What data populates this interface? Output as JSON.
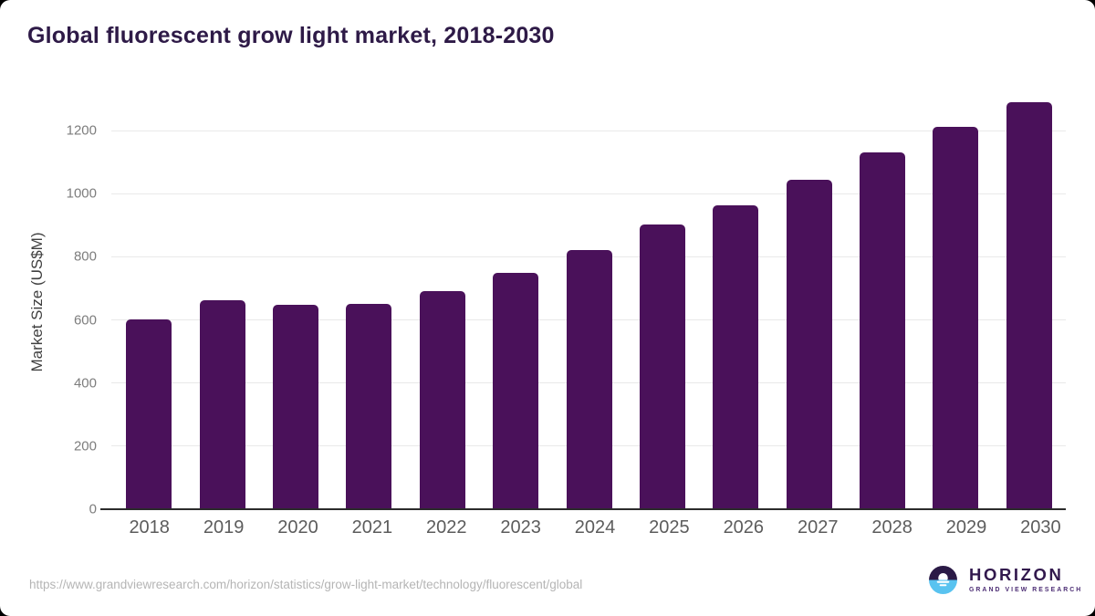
{
  "page": {
    "title": "Global fluorescent grow light market, 2018-2030",
    "source_url": "https://www.grandviewresearch.com/horizon/statistics/grow-light-market/technology/fluorescent/global",
    "logo": {
      "name": "HORIZON",
      "tagline": "GRAND VIEW RESEARCH"
    }
  },
  "colors": {
    "bar": "#4a115a",
    "title_text": "#2e1a47",
    "gridline": "#e9e9e9",
    "axis_line": "#2b2b2b",
    "y_tick_text": "#7d7d7d",
    "x_tick_text": "#5c5c5c",
    "url_text": "#b5b5b5",
    "logo_navy": "#2b1a46",
    "logo_blue": "#59c3f0",
    "logo_wordmark": "#32194d"
  },
  "chart_data": {
    "type": "bar",
    "title": "Global fluorescent grow light market, 2018-2030",
    "categories": [
      "2018",
      "2019",
      "2020",
      "2021",
      "2022",
      "2023",
      "2024",
      "2025",
      "2026",
      "2027",
      "2028",
      "2029",
      "2030"
    ],
    "values": [
      602,
      661,
      647,
      652,
      690,
      750,
      822,
      902,
      962,
      1043,
      1132,
      1213,
      1289
    ],
    "xlabel": "",
    "ylabel": "Market Size (US$M)",
    "ylim": [
      0,
      1310
    ],
    "yticks": [
      0,
      200,
      400,
      600,
      800,
      1000,
      1200
    ],
    "grid": "horizontal",
    "legend": "none",
    "bar_color": "#4a115a"
  }
}
